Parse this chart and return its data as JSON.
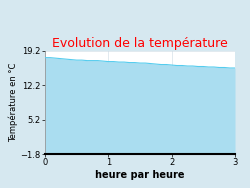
{
  "title": "Evolution de la température",
  "title_color": "#ff0000",
  "xlabel": "heure par heure",
  "ylabel": "Température en °C",
  "background_color": "#d6e8f0",
  "plot_background_color": "#ffffff",
  "fill_color": "#aaddf0",
  "line_color": "#55ccee",
  "ylim": [
    -1.8,
    19.2
  ],
  "xlim": [
    0,
    3
  ],
  "yticks": [
    -1.8,
    5.2,
    12.2,
    19.2
  ],
  "xticks": [
    0,
    1,
    2,
    3
  ],
  "x": [
    0.0,
    0.083,
    0.167,
    0.25,
    0.333,
    0.417,
    0.5,
    0.583,
    0.667,
    0.75,
    0.833,
    0.917,
    1.0,
    1.083,
    1.167,
    1.25,
    1.333,
    1.417,
    1.5,
    1.583,
    1.667,
    1.75,
    1.833,
    1.917,
    2.0,
    2.083,
    2.167,
    2.25,
    2.333,
    2.417,
    2.5,
    2.583,
    2.667,
    2.75,
    2.833,
    2.917,
    3.0
  ],
  "y": [
    17.8,
    17.8,
    17.7,
    17.6,
    17.5,
    17.4,
    17.3,
    17.3,
    17.2,
    17.2,
    17.2,
    17.1,
    17.0,
    17.0,
    16.9,
    16.9,
    16.8,
    16.8,
    16.7,
    16.7,
    16.6,
    16.5,
    16.4,
    16.4,
    16.3,
    16.2,
    16.2,
    16.1,
    16.1,
    16.0,
    16.0,
    15.9,
    15.9,
    15.8,
    15.8,
    15.7,
    15.7
  ],
  "title_fontsize": 9,
  "tick_fontsize": 6,
  "xlabel_fontsize": 7,
  "ylabel_fontsize": 6
}
